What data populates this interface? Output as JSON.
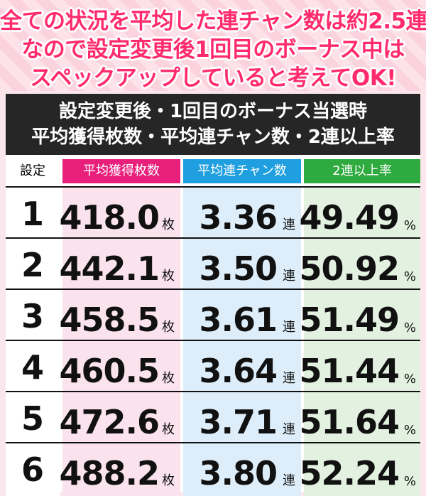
{
  "banner": {
    "line1": "全ての状況を平均した連チャン数は約2.5連",
    "line2": "なので設定変更後1回目のボーナス中は",
    "line3": "スペックアップしていると考えてOK!"
  },
  "table": {
    "title_line1": "設定変更後・1回目のボーナス当選時",
    "title_line2": "平均獲得枚数・平均連チャン数・2連以上率",
    "columns": {
      "setting": "設定",
      "avg_medals": "平均獲得枚数",
      "avg_streak": "平均連チャン数",
      "rate_2plus": "2連以上率"
    },
    "units": {
      "medals": "枚",
      "streak": "連",
      "percent": "%"
    },
    "rows": [
      {
        "setting": "1",
        "avg_medals": "418.0",
        "avg_streak": "3.36",
        "rate_2plus": "49.49"
      },
      {
        "setting": "2",
        "avg_medals": "442.1",
        "avg_streak": "3.50",
        "rate_2plus": "50.92"
      },
      {
        "setting": "3",
        "avg_medals": "458.5",
        "avg_streak": "3.61",
        "rate_2plus": "51.49"
      },
      {
        "setting": "4",
        "avg_medals": "460.5",
        "avg_streak": "3.64",
        "rate_2plus": "51.44"
      },
      {
        "setting": "5",
        "avg_medals": "472.6",
        "avg_streak": "3.71",
        "rate_2plus": "51.64"
      },
      {
        "setting": "6",
        "avg_medals": "488.2",
        "avg_streak": "3.80",
        "rate_2plus": "52.24"
      }
    ]
  },
  "colors": {
    "banner_text": "#ff2b6e",
    "header_bg": "#262626",
    "avg_medals_header": "#e8207c",
    "avg_streak_header": "#1f9fe0",
    "rate_header": "#2faa3e"
  }
}
